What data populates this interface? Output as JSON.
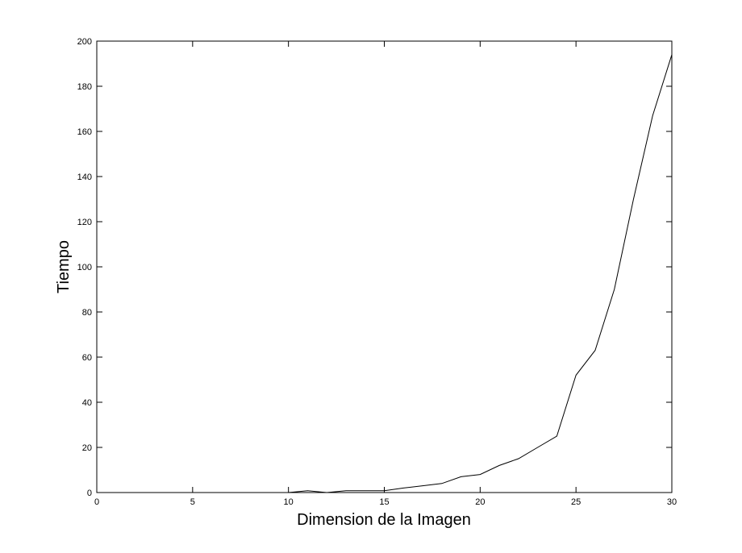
{
  "chart_data": {
    "type": "line",
    "title": "",
    "xlabel": "Dimension de la Imagen",
    "ylabel": "Tiempo",
    "xlim": [
      0,
      30
    ],
    "ylim": [
      0,
      200
    ],
    "xticks": [
      0,
      5,
      10,
      15,
      20,
      25,
      30
    ],
    "yticks": [
      0,
      20,
      40,
      60,
      80,
      100,
      120,
      140,
      160,
      180,
      200
    ],
    "grid": false,
    "line_color": "#000000",
    "series": [
      {
        "x": [
          10,
          11,
          12,
          13,
          14,
          15,
          16,
          17,
          18,
          19,
          20,
          21,
          22,
          23,
          24,
          25,
          26,
          27,
          28,
          29,
          30
        ],
        "values": [
          0,
          0.8,
          0,
          0.8,
          0.8,
          0.8,
          2,
          3,
          4,
          7,
          8,
          12,
          15,
          20,
          25,
          52,
          63,
          90,
          130,
          167,
          194
        ]
      }
    ]
  }
}
